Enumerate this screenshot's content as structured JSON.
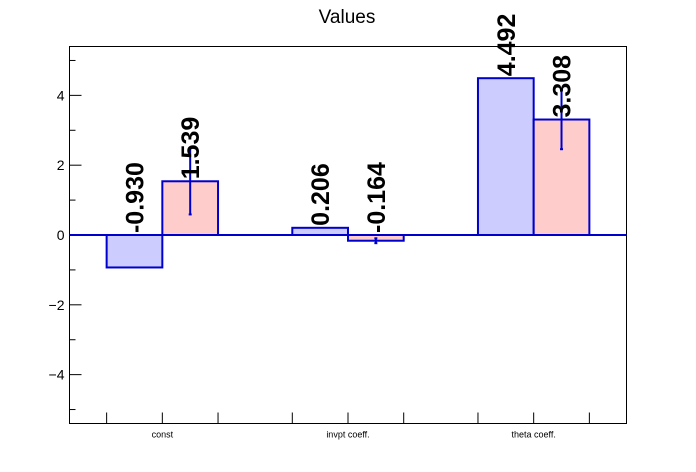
{
  "chart_data": {
    "type": "bar",
    "title": "Values",
    "xlabel": "",
    "ylabel": "",
    "categories": [
      "const",
      "invpt coeff.",
      "theta coeff."
    ],
    "ylim": [
      -5.4,
      5.4
    ],
    "yticks": [
      -4,
      -2,
      0,
      2,
      4
    ],
    "ytick_labels": [
      "−4",
      "−2",
      "0",
      "2",
      "4"
    ],
    "series": [
      {
        "values": [
          -0.93,
          0.206,
          4.492
        ],
        "labels": [
          "-0.930",
          "0.206",
          "4.492"
        ],
        "color": "#ccccff",
        "edge_color": "#0000cc"
      },
      {
        "values": [
          1.539,
          -0.164,
          3.308
        ],
        "labels": [
          "1.539",
          "-0.164",
          "3.308"
        ],
        "errors": [
          0.95,
          0.07,
          0.85
        ],
        "color": "#ffcccc",
        "edge_color": "#0000cc"
      }
    ],
    "grid": false,
    "legend": "none"
  }
}
